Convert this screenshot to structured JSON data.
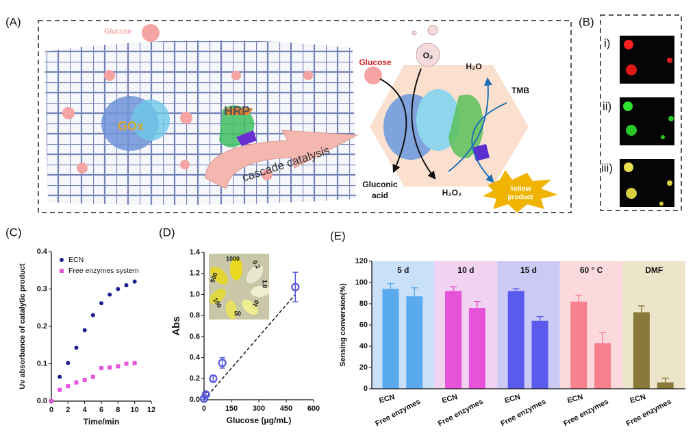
{
  "panels": {
    "a": "(A)",
    "b": "(B)",
    "c": "(C)",
    "d": "(D)",
    "e": "(E)"
  },
  "scheme": {
    "glucose_left": "Glucose",
    "gox": "GOx",
    "hrp": "HRP",
    "cascade": "cascade catalysis",
    "glucose_right": "Glucose",
    "o2": "O₂",
    "h2o": "H₂O",
    "tmb": "TMB",
    "gluconic": [
      "Gluconic",
      "acid"
    ],
    "h2o2": "H₂O₂",
    "yellow": [
      "Yellow",
      "product"
    ]
  },
  "fluorescence": [
    "i)",
    "ii)",
    "iii)"
  ],
  "chart_data": [
    {
      "type": "scatter",
      "xlabel": "Time/min",
      "ylabel": "Uv absorbance of catalytic product",
      "x": [
        0,
        1,
        2,
        3,
        4,
        5,
        6,
        7,
        8,
        9,
        10
      ],
      "series": [
        {
          "name": "ECN",
          "color": "#1c1c8f",
          "marker": "circle",
          "values": [
            0,
            0.065,
            0.102,
            0.143,
            0.19,
            0.23,
            0.262,
            0.285,
            0.3,
            0.31,
            0.32
          ]
        },
        {
          "name": "Free enzymes system",
          "color": "#e455e0",
          "marker": "square",
          "values": [
            0,
            0.03,
            0.04,
            0.05,
            0.057,
            0.065,
            0.088,
            0.09,
            0.093,
            0.1,
            0.102
          ]
        }
      ],
      "xlim": [
        0,
        12
      ],
      "xticks": [
        0,
        2,
        4,
        6,
        8,
        10,
        12
      ],
      "ylim": [
        0,
        0.4
      ],
      "yticks": [
        {
          "value": 0,
          "label": "0.0"
        },
        0.1,
        0.2,
        0.3,
        0.4
      ],
      "legend": "upper left"
    },
    {
      "type": "errorscatter",
      "xlabel": "Glucose (μg/mL)",
      "ylabel": "Abs",
      "x": [
        0,
        10,
        50,
        100,
        500
      ],
      "values": [
        0.01,
        0.05,
        0.2,
        0.35,
        1.07
      ],
      "errors": [
        0.01,
        0.02,
        0.03,
        0.05,
        0.14
      ],
      "color": "#5555dd",
      "trendline": {
        "x": [
          0,
          500
        ],
        "values": [
          0,
          1.0
        ]
      },
      "xlim": [
        0,
        600
      ],
      "xticks": [
        0,
        150,
        300,
        450,
        600
      ],
      "ylim": [
        0,
        1.4
      ],
      "yticks": [
        {
          "value": 0,
          "label": "0.0"
        },
        0.2,
        0.4,
        0.6,
        0.8,
        {
          "value": 1,
          "label": "1.0"
        },
        1.2,
        1.4
      ],
      "inset_labels": [
        "1000",
        "0.2",
        "1.0",
        "10",
        "50",
        "100",
        "500"
      ]
    },
    {
      "type": "grouped_bar",
      "ylabel": "Sensing conversion(%)",
      "categories": [
        "5 d",
        "10 d",
        "15 d",
        "60 ° C",
        "DMF"
      ],
      "category_colors": [
        "#5aaaf0",
        "#e652d8",
        "#5a5aee",
        "#f7808c",
        "#8a7a3a"
      ],
      "background_colors": [
        "#c9e1f8",
        "#f1d2f1",
        "#cacaf5",
        "#fbd9dd",
        "#ede5c9"
      ],
      "series": [
        {
          "name": "ECN",
          "values": [
            94,
            92,
            92,
            82,
            72
          ],
          "errors": [
            5,
            4,
            2,
            6,
            6
          ]
        },
        {
          "name": "Free enzymes",
          "values": [
            87,
            76,
            64,
            43,
            6
          ],
          "errors": [
            8,
            6,
            4,
            10,
            4
          ]
        }
      ],
      "ylim": [
        0,
        120
      ],
      "yticks": [
        0,
        20,
        40,
        60,
        80,
        100,
        120
      ]
    }
  ]
}
